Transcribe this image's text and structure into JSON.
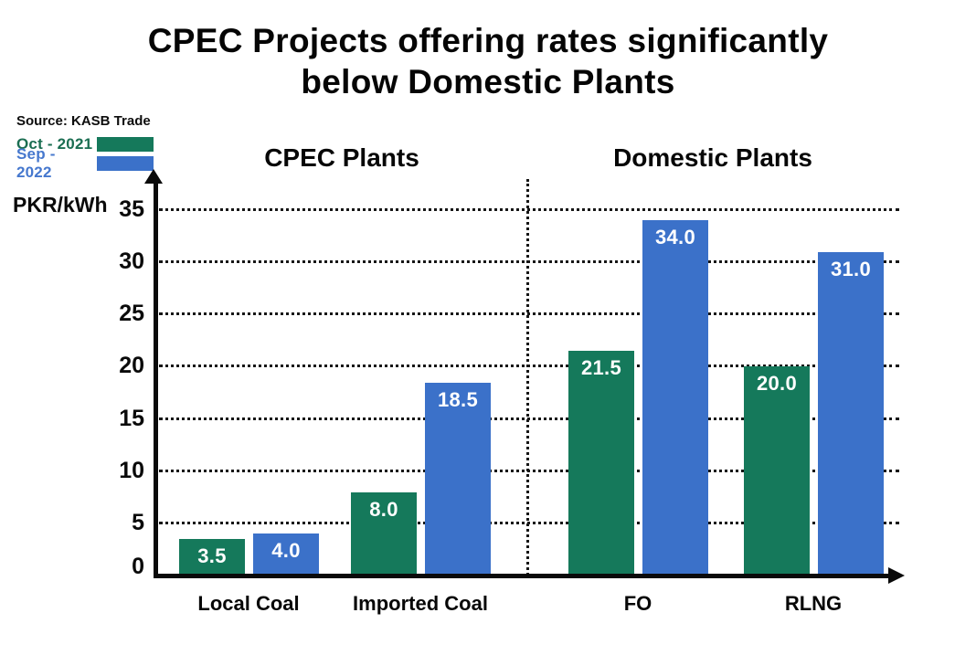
{
  "title": {
    "line1": "CPEC Projects offering rates significantly",
    "line2": "below Domestic Plants"
  },
  "source": "Source: KASB Trade",
  "legend": {
    "items": [
      {
        "label": "Oct - 2021",
        "swatch_color": "#15795B",
        "text_color": "#1B6E52"
      },
      {
        "label": "Sep - 2022",
        "swatch_color": "#3B71C9",
        "text_color": "#4678CE"
      }
    ]
  },
  "sections": {
    "left": "CPEC Plants",
    "right": "Domestic Plants"
  },
  "chart_data": {
    "type": "bar",
    "title": "CPEC Projects offering rates significantly below Domestic Plants",
    "source": "Source: KASB Trade",
    "categories": [
      "Local Coal",
      "Imported Coal",
      "FO",
      "RLNG"
    ],
    "series": [
      {
        "name": "Oct - 2021",
        "color": "#15795B",
        "values": [
          3.5,
          8.0,
          21.5,
          20.0
        ]
      },
      {
        "name": "Sep - 2022",
        "color": "#3B71C9",
        "values": [
          4.0,
          18.5,
          34.0,
          31.0
        ]
      }
    ],
    "value_label_format": "one-decimal",
    "value_label_color": "#ffffff",
    "xlabel": "",
    "ylabel": "PKR/kWh",
    "ylim": [
      0,
      35
    ],
    "yticks": [
      0,
      5,
      10,
      15,
      20,
      25,
      30,
      35
    ],
    "grid": "horizontal-dotted",
    "separator": "vertical-dotted line between Imported Coal and FO",
    "section_labels": [
      "CPEC Plants",
      "Domestic Plants"
    ],
    "legend_position": "top-left"
  }
}
